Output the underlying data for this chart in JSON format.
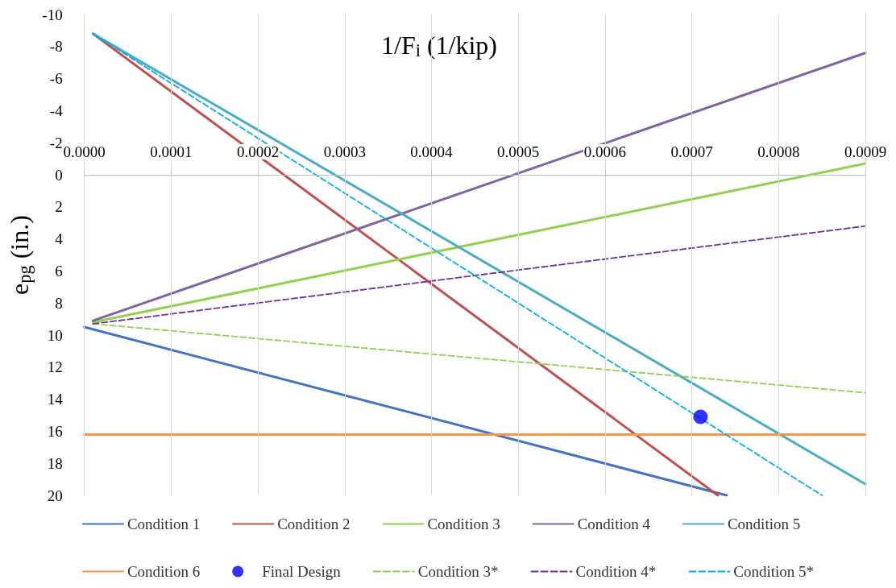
{
  "chart_data": {
    "type": "line",
    "xlabel": "1/F$_{i}$ (1/kip)",
    "ylabel": "e$_{pg}$ (in.)",
    "xlim": [
      0,
      0.0009
    ],
    "ylim": [
      20,
      -10
    ],
    "xticks": [
      {
        "value": 0,
        "label": "0.0000"
      },
      {
        "value": 0.0001,
        "label": "0.0001"
      },
      {
        "value": 0.0002,
        "label": "0.0002"
      },
      {
        "value": 0.0003,
        "label": "0.0003"
      },
      {
        "value": 0.0004,
        "label": "0.0004"
      },
      {
        "value": 0.0005,
        "label": "0.0005"
      },
      {
        "value": 0.0006,
        "label": "0.0006"
      },
      {
        "value": 0.0007,
        "label": "0.0007"
      },
      {
        "value": 0.0008,
        "label": "0.0008"
      },
      {
        "value": 0.0009,
        "label": "0.0009"
      }
    ],
    "yticks": [
      -10,
      -8,
      -6,
      -4,
      -2,
      0,
      2,
      4,
      6,
      8,
      10,
      12,
      14,
      16,
      18,
      20
    ],
    "grid": "x",
    "legend": "bottom",
    "marker": "none",
    "line_style": "solid",
    "series": [
      {
        "name": "Condition 1",
        "color": "#4472c4",
        "x": [
          0,
          0.00074
        ],
        "values": [
          9.5,
          20
        ]
      },
      {
        "name": "Condition 2",
        "color": "#c0504d",
        "x": [
          1e-05,
          0.00073
        ],
        "values": [
          -8.8,
          20
        ]
      },
      {
        "name": "Condition 3",
        "color": "#92d050",
        "x": [
          1e-05,
          0.0009
        ],
        "values": [
          9.2,
          -0.7
        ]
      },
      {
        "name": "Condition 4",
        "color": "#8064a2",
        "x": [
          1e-05,
          0.0009
        ],
        "values": [
          9.1,
          -7.6
        ]
      },
      {
        "name": "Condition 5",
        "color": "#4bacc6",
        "x": [
          1e-05,
          0.0009
        ],
        "values": [
          -8.8,
          19.3
        ]
      },
      {
        "name": "Condition 6",
        "color": "#f79646",
        "x": [
          0,
          0.0009
        ],
        "values": [
          16.2,
          16.2
        ]
      },
      {
        "name": "Final Design",
        "type": "scatter",
        "marker": "circle",
        "color": "#0000ff",
        "x": [
          0.00071
        ],
        "values": [
          15.1
        ]
      },
      {
        "name": "Condition 3*",
        "color": "#92d050",
        "line_style": "dashed",
        "x": [
          1e-05,
          0.0009
        ],
        "values": [
          9.3,
          13.6
        ]
      },
      {
        "name": "Condition 4*",
        "color": "#7030a0",
        "line_style": "dashed",
        "x": [
          1e-05,
          0.0009
        ],
        "values": [
          9.3,
          3.2
        ]
      },
      {
        "name": "Condition 5*",
        "color": "#00b0f0",
        "line_style": "dashed",
        "x": [
          1e-05,
          0.00085
        ],
        "values": [
          -8.8,
          20
        ]
      }
    ]
  }
}
